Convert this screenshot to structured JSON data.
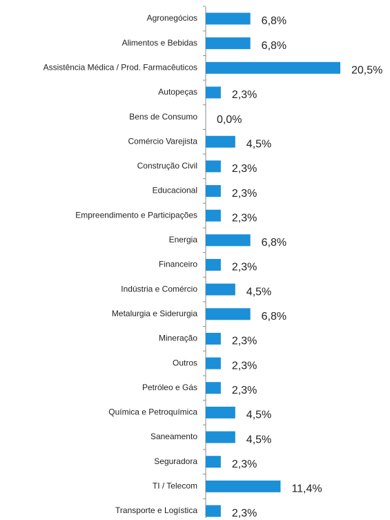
{
  "chart_data": {
    "type": "bar",
    "orientation": "horizontal",
    "color": "#1b8fd8",
    "categories": [
      "Agronegócios",
      "Alimentos e Bebidas",
      "Assistência Médica / Prod. Farmacêuticos",
      "Autopeças",
      "Bens de Consumo",
      "Comércio Varejista",
      "Construção Civil",
      "Educacional",
      "Empreendimento e Participações",
      "Energia",
      "Financeiro",
      "Indústria e Comércio",
      "Metalurgia e Siderurgia",
      "Mineração",
      "Outros",
      "Petróleo e Gás",
      "Química e Petroquímica",
      "Saneamento",
      "Seguradora",
      "TI / Telecom",
      "Transporte e Logística"
    ],
    "values": [
      6.8,
      6.8,
      20.5,
      2.3,
      0.0,
      4.5,
      2.3,
      2.3,
      2.3,
      6.8,
      2.3,
      4.5,
      6.8,
      2.3,
      2.3,
      2.3,
      4.5,
      4.5,
      2.3,
      11.4,
      2.3
    ],
    "value_labels": [
      "6,8%",
      "6,8%",
      "20,5%",
      "2,3%",
      "0,0%",
      "4,5%",
      "2,3%",
      "2,3%",
      "2,3%",
      "6,8%",
      "2,3%",
      "4,5%",
      "6,8%",
      "2,3%",
      "2,3%",
      "2,3%",
      "4,5%",
      "4,5%",
      "2,3%",
      "11,4%",
      "2,3%"
    ]
  }
}
